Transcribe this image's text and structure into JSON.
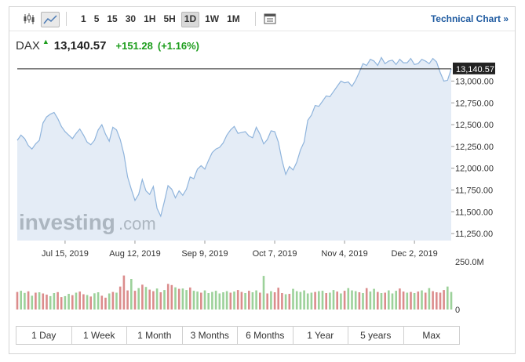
{
  "toolbar": {
    "icons": [
      "candlestick-icon",
      "line-chart-icon",
      "settings-panel-icon"
    ],
    "intervals": [
      "1",
      "5",
      "15",
      "30",
      "1H",
      "5H",
      "1D",
      "1W",
      "1M"
    ],
    "active_interval": "1D",
    "technical_chart_label": "Technical Chart »"
  },
  "quote": {
    "symbol": "DAX",
    "price": "13,140.57",
    "change": "+151.28",
    "change_pct": "(+1.16%)",
    "up_color": "#1c9d1c"
  },
  "watermark": {
    "brand": "investing",
    "suffix": ".com"
  },
  "ranges": [
    "1 Day",
    "1 Week",
    "1 Month",
    "3 Months",
    "6 Months",
    "1 Year",
    "5 years",
    "Max"
  ],
  "chart_data": {
    "type": "area",
    "price_axis": {
      "ylim": [
        11170,
        13310
      ],
      "ticks": [
        13000,
        12750,
        12500,
        12250,
        12000,
        11750,
        11500,
        11250
      ],
      "tick_labels": [
        "13,000.00",
        "12,750.00",
        "12,500.00",
        "12,250.00",
        "12,000.00",
        "11,750.00",
        "11,500.00",
        "11,250.00"
      ],
      "current_value": 13140.57,
      "current_label": "13,140.57"
    },
    "x_labels": [
      "Jul 15, 2019",
      "Aug 12, 2019",
      "Sep 9, 2019",
      "Oct 7, 2019",
      "Nov 4, 2019",
      "Dec 2, 2019"
    ],
    "x_label_index": [
      13,
      32,
      51,
      70,
      89,
      108
    ],
    "price_series": {
      "values": [
        12320,
        12380,
        12340,
        12260,
        12220,
        12280,
        12320,
        12520,
        12590,
        12620,
        12640,
        12570,
        12480,
        12420,
        12380,
        12340,
        12400,
        12450,
        12380,
        12300,
        12270,
        12320,
        12440,
        12500,
        12390,
        12310,
        12470,
        12440,
        12330,
        12160,
        11900,
        11760,
        11630,
        11700,
        11870,
        11740,
        11700,
        11790,
        11540,
        11450,
        11620,
        11800,
        11760,
        11660,
        11740,
        11690,
        11760,
        11900,
        11880,
        11990,
        12030,
        11990,
        12090,
        12180,
        12220,
        12240,
        12290,
        12380,
        12440,
        12480,
        12400,
        12410,
        12420,
        12370,
        12350,
        12470,
        12390,
        12280,
        12330,
        12430,
        12420,
        12300,
        12090,
        11930,
        12020,
        11980,
        12070,
        12210,
        12300,
        12550,
        12610,
        12720,
        12710,
        12770,
        12830,
        12820,
        12880,
        12940,
        13000,
        12980,
        12990,
        12940,
        13010,
        13100,
        13200,
        13180,
        13250,
        13230,
        13180,
        13270,
        13200,
        13230,
        13240,
        13190,
        13250,
        13210,
        13210,
        13260,
        13190,
        13200,
        13250,
        13230,
        13200,
        13260,
        13220,
        13100,
        13000,
        13010,
        13140.57
      ],
      "line_color": "#8fb4dc",
      "fill_color": "#e4ecf6"
    },
    "volume_axis": {
      "ymax": 250,
      "tick_labels": [
        "250.0M",
        "0"
      ]
    },
    "volume_series": {
      "values": [
        92,
        98,
        87,
        95,
        72,
        88,
        90,
        84,
        78,
        70,
        86,
        91,
        65,
        70,
        82,
        75,
        88,
        94,
        80,
        76,
        68,
        85,
        90,
        72,
        62,
        84,
        92,
        88,
        120,
        178,
        100,
        160,
        98,
        112,
        130,
        118,
        104,
        96,
        110,
        90,
        102,
        134,
        128,
        116,
        108,
        110,
        102,
        115,
        98,
        94,
        88,
        100,
        86,
        92,
        98,
        84,
        90,
        96,
        88,
        94,
        102,
        92,
        86,
        98,
        90,
        100,
        88,
        176,
        84,
        96,
        90,
        114,
        86,
        80,
        82,
        108,
        96,
        92,
        100,
        84,
        88,
        92,
        96,
        98,
        86,
        88,
        102,
        94,
        84,
        98,
        112,
        100,
        96,
        90,
        86,
        112,
        94,
        108,
        92,
        86,
        88,
        100,
        84,
        98,
        110,
        94,
        88,
        92,
        86,
        94,
        100,
        88,
        112,
        96,
        90,
        88,
        102,
        120,
        92
      ],
      "directions": [
        "d",
        "u",
        "u",
        "d",
        "u",
        "d",
        "u",
        "d",
        "d",
        "u",
        "u",
        "d",
        "d",
        "u",
        "u",
        "d",
        "u",
        "d",
        "d",
        "u",
        "d",
        "u",
        "u",
        "d",
        "d",
        "u",
        "d",
        "u",
        "d",
        "d",
        "d",
        "u",
        "d",
        "u",
        "d",
        "u",
        "d",
        "d",
        "u",
        "d",
        "u",
        "d",
        "d",
        "u",
        "d",
        "u",
        "u",
        "d",
        "u",
        "u",
        "d",
        "u",
        "u",
        "u",
        "u",
        "u",
        "u",
        "u",
        "d",
        "u",
        "d",
        "d",
        "u",
        "d",
        "u",
        "u",
        "d",
        "u",
        "d",
        "u",
        "d",
        "d",
        "d",
        "u",
        "d",
        "u",
        "u",
        "u",
        "u",
        "u",
        "u",
        "d",
        "u",
        "u",
        "d",
        "u",
        "u",
        "d",
        "u",
        "d",
        "u",
        "u",
        "u",
        "d",
        "u",
        "d",
        "u",
        "u",
        "d",
        "u",
        "d",
        "u",
        "u",
        "u",
        "d",
        "d",
        "u",
        "d",
        "u",
        "d",
        "u",
        "d",
        "u",
        "d",
        "d",
        "d",
        "d",
        "u",
        "u"
      ],
      "up_color": "#9cd19a",
      "down_color": "#db8c8c"
    }
  }
}
